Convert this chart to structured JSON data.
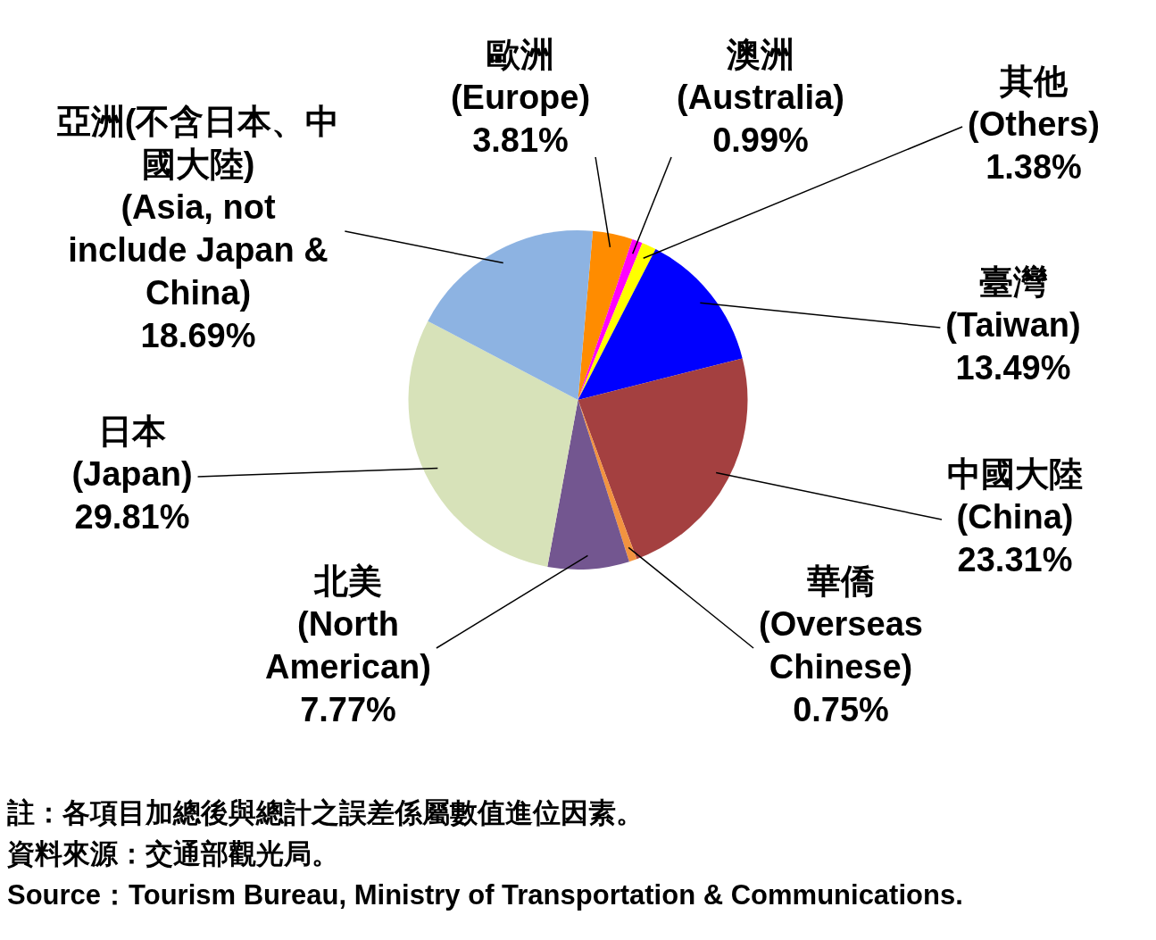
{
  "chart_data": {
    "type": "pie",
    "categories": [
      "歐洲\n(Europe)",
      "澳洲\n(Australia)",
      "其他\n(Others)",
      "臺灣\n(Taiwan)",
      "中國大陸\n(China)",
      "華僑\n(Overseas\nChinese)",
      "北美\n(North\nAmerican)",
      "日本\n(Japan)",
      "亞洲(不含日本、中國大陸)\n(Asia, not\ninclude Japan &\nChina)"
    ],
    "values": [
      3.81,
      0.99,
      1.38,
      13.49,
      23.31,
      0.75,
      7.77,
      29.81,
      18.69
    ],
    "value_labels": [
      "3.81%",
      "0.99%",
      "1.38%",
      "13.49%",
      "23.31%",
      "0.75%",
      "7.77%",
      "29.81%",
      "18.69%"
    ],
    "colors": [
      "#ff8c00",
      "#ff00ff",
      "#ffff00",
      "#0000ff",
      "#a44040",
      "#f29340",
      "#735690",
      "#d7e2b9",
      "#8db3e2"
    ],
    "annotations": [
      "註：各項目加總後與總計之誤差係屬數值進位因素。",
      "資料來源：交通部觀光局。",
      "Source：Tourism Bureau, Ministry of Transportation & Communications."
    ]
  }
}
